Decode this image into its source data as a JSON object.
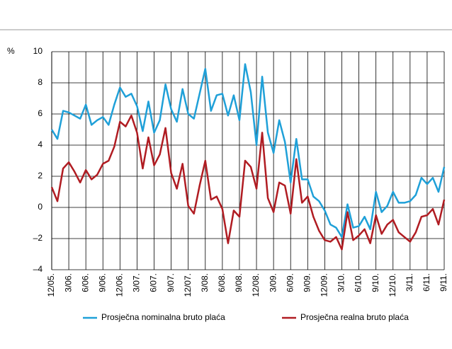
{
  "chart_data": {
    "type": "line",
    "ylabel": "%",
    "categories": [
      "12/05.",
      null,
      null,
      "3/06.",
      null,
      null,
      "6/06.",
      null,
      null,
      "9/06.",
      null,
      null,
      "12/06.",
      null,
      null,
      "3/07.",
      null,
      null,
      "6/07.",
      null,
      null,
      "9/07.",
      null,
      null,
      "12/07.",
      null,
      null,
      "3/08.",
      null,
      null,
      "6/08.",
      null,
      null,
      "9/08.",
      null,
      null,
      "12/08.",
      null,
      null,
      "3/09.",
      null,
      null,
      "6/09.",
      null,
      null,
      "9/09.",
      null,
      null,
      "12/09.",
      null,
      null,
      "3/10.",
      null,
      null,
      "6/10.",
      null,
      null,
      "9/10.",
      null,
      null,
      "12/10.",
      null,
      null,
      "3/11.",
      null,
      null,
      "6/11.",
      null,
      null,
      "9/11."
    ],
    "series": [
      {
        "name": "Prosječna nominalna bruto plaća",
        "color": "#1fa0d8",
        "values": [
          5.0,
          4.4,
          6.2,
          6.1,
          5.9,
          5.7,
          6.6,
          5.3,
          5.6,
          5.8,
          5.3,
          6.6,
          7.7,
          7.1,
          7.3,
          6.5,
          4.9,
          6.8,
          4.8,
          5.6,
          7.9,
          6.3,
          5.5,
          7.6,
          6.0,
          5.7,
          7.3,
          8.9,
          6.2,
          7.2,
          7.3,
          5.9,
          7.2,
          5.6,
          9.2,
          7.4,
          4.0,
          8.4,
          4.8,
          3.5,
          5.6,
          4.2,
          1.6,
          4.4,
          1.8,
          1.8,
          0.7,
          0.4,
          -0.2,
          -1.1,
          -1.3,
          -1.9,
          0.2,
          -1.3,
          -1.2,
          -0.6,
          -1.4,
          1.0,
          -0.3,
          0.1,
          1.0,
          0.3,
          0.3,
          0.4,
          0.8,
          1.9,
          1.5,
          1.9,
          1.0,
          2.6
        ]
      },
      {
        "name": "Prosječna realna bruto plaća",
        "color": "#b01c22",
        "values": [
          1.3,
          0.4,
          2.5,
          2.9,
          2.3,
          1.6,
          2.4,
          1.8,
          2.1,
          2.8,
          3.0,
          3.9,
          5.5,
          5.2,
          5.9,
          4.8,
          2.5,
          4.5,
          2.7,
          3.4,
          5.1,
          2.2,
          1.2,
          2.8,
          0.1,
          -0.4,
          1.4,
          3.0,
          0.5,
          0.7,
          -0.1,
          -2.3,
          -0.2,
          -0.6,
          3.0,
          2.6,
          1.2,
          4.8,
          0.6,
          -0.3,
          1.6,
          1.4,
          -0.4,
          3.1,
          0.3,
          0.7,
          -0.6,
          -1.5,
          -2.1,
          -2.2,
          -1.9,
          -2.7,
          -0.3,
          -2.1,
          -1.8,
          -1.4,
          -2.3,
          -0.5,
          -1.7,
          -1.1,
          -0.8,
          -1.6,
          -1.9,
          -2.2,
          -1.6,
          -0.6,
          -0.5,
          -0.1,
          -1.1,
          0.5
        ]
      }
    ],
    "ylim": [
      -4,
      10
    ],
    "yticks": [
      {
        "value": -4,
        "label": "–4"
      },
      {
        "value": -2,
        "label": "–2"
      },
      0,
      2,
      4,
      6,
      8,
      10
    ],
    "grid": true,
    "legend": "bottom"
  }
}
